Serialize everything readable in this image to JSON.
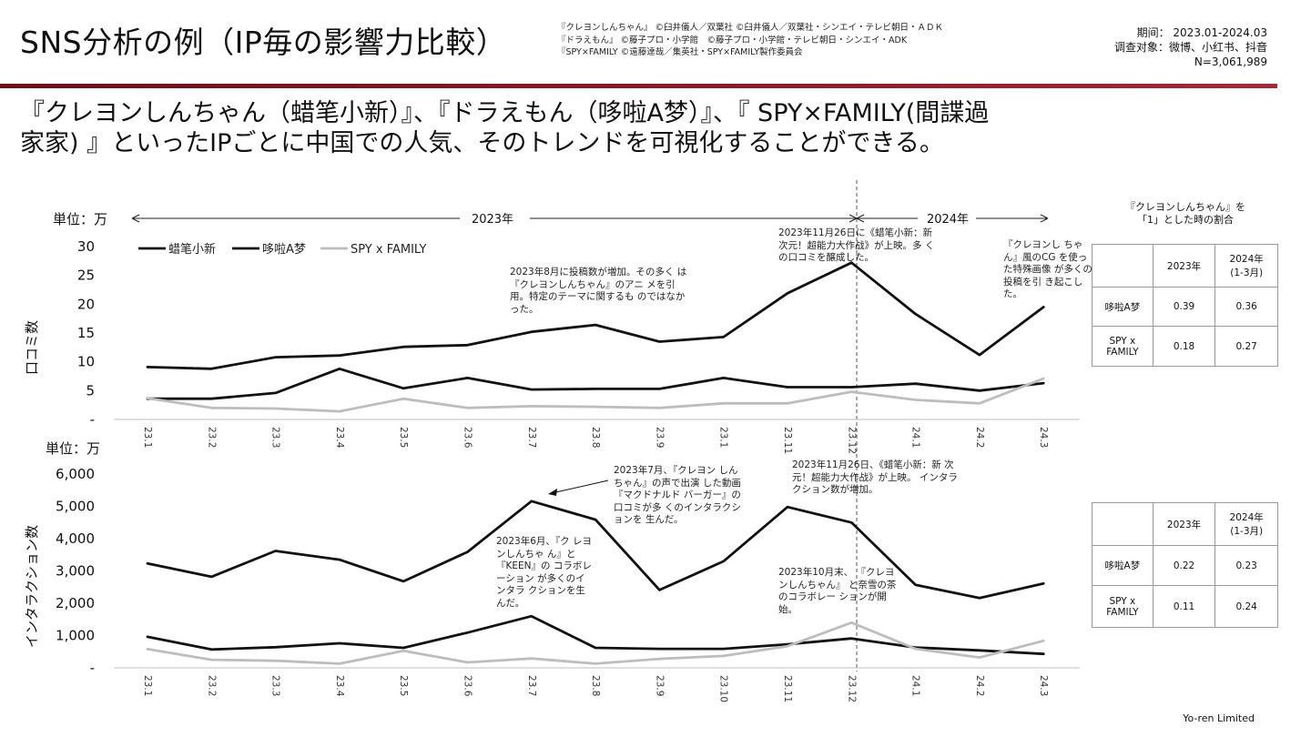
{
  "header": {
    "title": "SNS分析の例（IP毎の影響力比較）",
    "copyright_lines": [
      "『クレヨンしんちゃん』 ©臼井儀人／双葉社 ©臼井儀人／双葉社・シンエイ・テレビ朝日・ＡＤＫ",
      "『ドラえもん』 ©藤子プロ・小学館　©藤子プロ・小学館・テレビ朝日・シンエイ・ADK",
      "『SPY×FAMILY ©遠藤達哉／集英社・SPY×FAMILY製作委員会"
    ],
    "period": "期间：  2023.01-2024.03",
    "targets": "调查对象：微博、小红书、抖音",
    "n": "N=3,061,989"
  },
  "lead": {
    "line1": "『クレヨンしんちゃん（蜡笔小新）』、『ドラえもん（哆啦A梦）』、『 SPY×FAMILY(間諜過",
    "line2": "家家) 』といったIPごとに中国での人気、そのトレンドを可視化することができる。"
  },
  "colors": {
    "dark": "#111111",
    "light": "#bdbdbd",
    "accent": "#7a1421"
  },
  "timeline": {
    "year2023": "2023年",
    "year2024": "2024年"
  },
  "chart1": {
    "unit": "単位：万",
    "ylabel": "口コミ数",
    "legend": [
      "蜡笔小新",
      "哆啦A梦",
      "SPY x FAMILY"
    ],
    "notes": [
      "2023年8月に投稿数が増加。その多く は『クレヨンしんちゃん』のアニ メを引用。特定のテーマに関するも のではなかった。",
      "2023年11月26日に《蜡笔小新：新 次元！超能力大作战》が上映。多 くの口コミを醸成した。",
      "『クレヨンし ちゃん』風のCG を使った特殊画像 が多くの投稿を引 き起こした。"
    ]
  },
  "chart2": {
    "unit": "単位：万",
    "ylabel": "インタラクション数",
    "notes": [
      "2023年7月、『クレヨン しんちゃん』の声で出演 した動画『マクドナルド バーガー』の口コミが多 くのインタラクションを 生んだ。",
      "2023年11月26日、《蜡笔小新：新 次元！超能力大作战》が上映。 インタラクション数が増加。",
      "2023年6月、『ク レヨンしんちゃ ん』と『KEEN』の コラボレーション が多くのインタラ クションを生んだ。",
      "2023年10月末、 『クレヨンしんちゃん』 と奈雪の茶のコラボレー ションが開始。"
    ]
  },
  "ratio_tables": {
    "title1": "『クレヨンしんちゃん』を",
    "title2": "「1」とした時の割合",
    "header": [
      "",
      "2023年",
      "2024年\n(1-3月)"
    ],
    "table1": [
      [
        "哆啦A梦",
        "0.39",
        "0.36"
      ],
      [
        "SPY x FAMILY",
        "0.18",
        "0.27"
      ]
    ],
    "table2": [
      [
        "哆啦A梦",
        "0.22",
        "0.23"
      ],
      [
        "SPY x FAMILY",
        "0.11",
        "0.24"
      ]
    ]
  },
  "footer": "Yo-ren Limited",
  "chart_data": [
    {
      "type": "line",
      "title": "口コミ数",
      "ylabel": "口コミ数",
      "unit": "万",
      "categories": [
        "23.1",
        "23.2",
        "23.3",
        "23.4",
        "23.5",
        "23.6",
        "23.7",
        "23.8",
        "23.9",
        "23.1",
        "23.11",
        "23.12",
        "24.1",
        "24.2",
        "24.3"
      ],
      "ylim": [
        0,
        30
      ],
      "yticks": [
        "-",
        "5",
        "10",
        "15",
        "20",
        "25",
        "30"
      ],
      "series": [
        {
          "name": "蜡笔小新",
          "color": "#111111",
          "values": [
            9.1,
            8.8,
            10.8,
            11.1,
            12.6,
            12.9,
            15.2,
            16.4,
            13.5,
            14.3,
            21.9,
            27.2,
            18.3,
            11.2,
            19.5
          ]
        },
        {
          "name": "哆啦A梦",
          "color": "#111111",
          "values": [
            3.6,
            3.6,
            4.6,
            8.8,
            5.4,
            7.2,
            5.2,
            5.3,
            5.3,
            7.2,
            5.6,
            5.6,
            6.2,
            5.0,
            6.3
          ]
        },
        {
          "name": "SPY x FAMILY",
          "color": "#bdbdbd",
          "values": [
            3.7,
            2.0,
            1.9,
            1.4,
            3.6,
            2.0,
            2.3,
            2.2,
            2.0,
            2.8,
            2.8,
            4.8,
            3.4,
            2.8,
            7.1
          ]
        }
      ]
    },
    {
      "type": "line",
      "title": "インタラクション数",
      "ylabel": "インタラクション数",
      "unit": "万",
      "categories": [
        "23.1",
        "23.2",
        "23.3",
        "23.4",
        "23.5",
        "23.6",
        "23.7",
        "23.8",
        "23.9",
        "23.10",
        "23.11",
        "23.12",
        "24.1",
        "24.2",
        "24.3"
      ],
      "ylim": [
        0,
        6000
      ],
      "yticks": [
        "-",
        "1,000",
        "2,000",
        "3,000",
        "4,000",
        "5,000",
        "6,000"
      ],
      "series": [
        {
          "name": "蜡笔小新",
          "color": "#111111",
          "values": [
            3230,
            2820,
            3620,
            3350,
            2680,
            3590,
            5160,
            4590,
            2410,
            3300,
            4980,
            4500,
            2570,
            2160,
            2610
          ]
        },
        {
          "name": "哆啦A梦",
          "color": "#111111",
          "values": [
            960,
            570,
            640,
            760,
            620,
            1090,
            1600,
            620,
            590,
            590,
            730,
            910,
            630,
            540,
            430
          ]
        },
        {
          "name": "SPY x FAMILY",
          "color": "#bdbdbd",
          "values": [
            580,
            250,
            220,
            130,
            530,
            170,
            290,
            130,
            280,
            370,
            670,
            1400,
            590,
            320,
            840
          ]
        }
      ]
    }
  ]
}
